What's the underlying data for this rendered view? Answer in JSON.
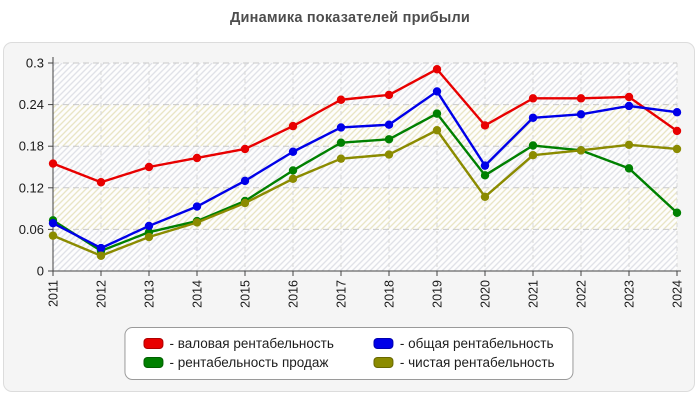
{
  "header": {
    "title": "Динамика показателей прибыли"
  },
  "chart_data": {
    "type": "line",
    "title": "Динамика показателей прибыли",
    "x": [
      2011,
      2012,
      2013,
      2014,
      2015,
      2016,
      2017,
      2018,
      2019,
      2020,
      2021,
      2022,
      2023,
      2024
    ],
    "xlabel": "",
    "ylabel": "",
    "ylim": [
      0,
      0.3
    ],
    "yticks": [
      0,
      0.06,
      0.12,
      0.18,
      0.24,
      0.3
    ],
    "ytick_labels": [
      "0",
      "0.06",
      "0.12",
      "0.18",
      "0.24",
      "0.3"
    ],
    "grid": true,
    "legend_position": "bottom-center",
    "series": [
      {
        "name": "валовая рентабельность",
        "legend_label": "- валовая рентабельность",
        "color": "#e80000",
        "z": 1,
        "values": [
          0.155,
          0.128,
          0.15,
          0.163,
          0.176,
          0.209,
          0.247,
          0.254,
          0.291,
          0.21,
          0.249,
          0.249,
          0.251,
          0.202
        ]
      },
      {
        "name": "общая рентабельность",
        "legend_label": "- общая рентабельность",
        "color": "#0000e8",
        "z": 3,
        "values": [
          0.069,
          0.033,
          0.065,
          0.093,
          0.13,
          0.172,
          0.207,
          0.211,
          0.259,
          0.152,
          0.221,
          0.226,
          0.238,
          0.229
        ]
      },
      {
        "name": "рентабельность продаж",
        "legend_label": "- рентабельность продаж",
        "color": "#008000",
        "z": 2,
        "values": [
          0.073,
          0.029,
          0.056,
          0.072,
          0.101,
          0.145,
          0.185,
          0.19,
          0.227,
          0.138,
          0.181,
          0.174,
          0.148,
          0.084
        ]
      },
      {
        "name": "чистая рентабельность",
        "legend_label": "- чистая рентабельность",
        "color": "#8b8b00",
        "z": 4,
        "values": [
          0.051,
          0.022,
          0.049,
          0.07,
          0.098,
          0.133,
          0.162,
          0.168,
          0.203,
          0.107,
          0.167,
          0.174,
          0.182,
          0.176
        ]
      }
    ]
  }
}
